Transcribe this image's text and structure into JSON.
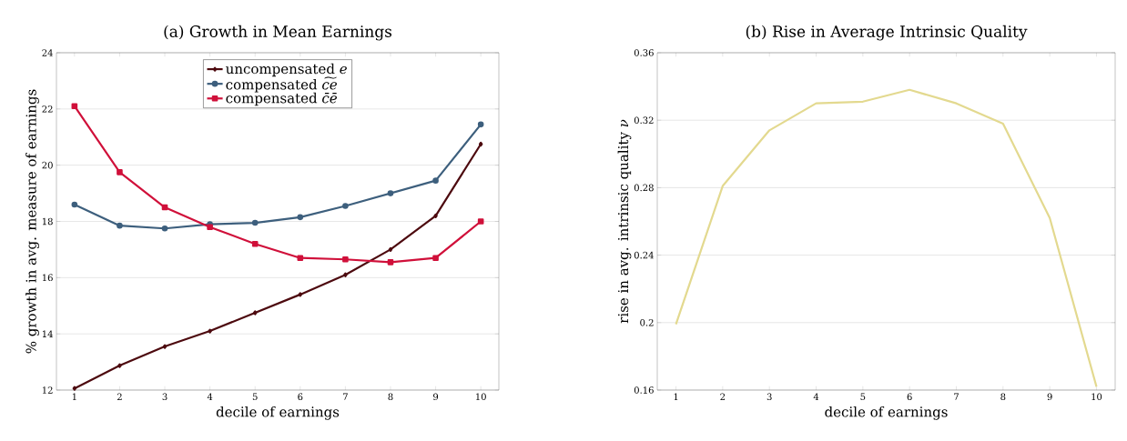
{
  "chart_data": [
    {
      "type": "line",
      "title": "(a) Growth in Mean Earnings",
      "xlabel": "decile of earnings",
      "ylabel": "% growth in avg. measure of earnings",
      "x": [
        1,
        2,
        3,
        4,
        5,
        6,
        7,
        8,
        9,
        10
      ],
      "series": [
        {
          "name": "uncompensated *e*",
          "color": "#4d0a0f",
          "marker": "diamond",
          "values": [
            12.06,
            12.87,
            13.55,
            14.1,
            14.75,
            15.4,
            16.1,
            17.0,
            18.2,
            20.75
          ]
        },
        {
          "name": "compensated *c͠e*",
          "color": "#3d5f7d",
          "marker": "circle",
          "values": [
            18.6,
            17.85,
            17.75,
            17.9,
            17.95,
            18.15,
            18.55,
            19.0,
            19.45,
            21.45
          ]
        },
        {
          "name": "compensated *c̄ē*",
          "color": "#d0103a",
          "marker": "square",
          "values": [
            22.1,
            19.75,
            18.5,
            17.8,
            17.2,
            16.7,
            16.65,
            16.55,
            16.7,
            18.0
          ]
        }
      ],
      "xlim": [
        0.6,
        10.4
      ],
      "xticks": [
        1,
        2,
        3,
        4,
        5,
        6,
        7,
        8,
        9,
        10
      ],
      "ylim": [
        12,
        24
      ],
      "yticks": [
        12,
        14,
        16,
        18,
        20,
        22,
        24
      ],
      "grid": "y",
      "legend": "top"
    },
    {
      "type": "line",
      "title": "(b) Rise in Average Intrinsic Quality",
      "xlabel": "decile of earnings",
      "ylabel": "rise in avg. intrinsic quality *ν*",
      "x": [
        1,
        2,
        3,
        4,
        5,
        6,
        7,
        8,
        9,
        10
      ],
      "series": [
        {
          "color": "#e3d98f",
          "values": [
            0.199,
            0.281,
            0.314,
            0.33,
            0.331,
            0.338,
            0.33,
            0.318,
            0.262,
            0.162
          ]
        }
      ],
      "xlim": [
        0.6,
        10.4
      ],
      "xticks": [
        1,
        2,
        3,
        4,
        5,
        6,
        7,
        8,
        9,
        10
      ],
      "ylim": [
        0.16,
        0.36
      ],
      "yticks": [
        0.16,
        0.2,
        0.24,
        0.28,
        0.32,
        0.36
      ],
      "grid": "y"
    }
  ]
}
